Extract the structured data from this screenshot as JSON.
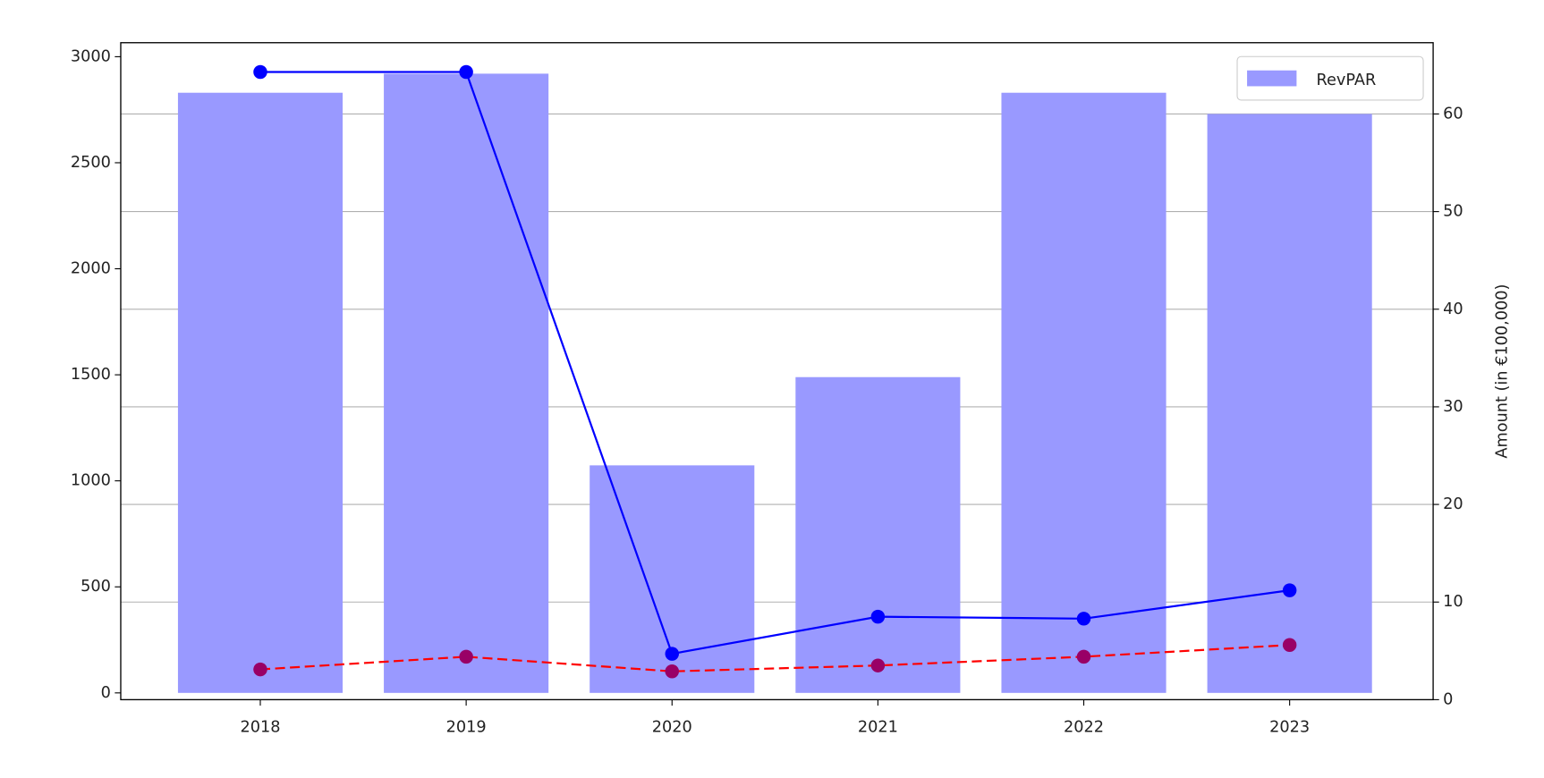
{
  "chart_data": {
    "type": "bar_line",
    "categories": [
      "2018",
      "2019",
      "2020",
      "2021",
      "2022",
      "2023"
    ],
    "series": [
      {
        "name": "RevPAR",
        "type": "bar",
        "color": "#9999ff",
        "values": [
          2830,
          2920,
          1073,
          1489,
          2830,
          2730
        ]
      },
      {
        "type": "line",
        "color": "#0000ff",
        "marker_color": "#0000ff",
        "linestyle": "solid",
        "axis": "y2",
        "values": [
          64.3,
          64.3,
          4.7,
          8.5,
          8.3,
          11.2
        ]
      },
      {
        "type": "line",
        "color": "#ff0000",
        "marker_color": "#990066",
        "linestyle": "dashed",
        "axis": "y2",
        "values": [
          3.1,
          4.4,
          2.9,
          3.5,
          4.4,
          5.6
        ]
      }
    ],
    "ylim": [
      -32,
      3066
    ],
    "yticks": [
      0,
      500,
      1000,
      1500,
      2000,
      2500,
      3000
    ],
    "y2lim": [
      0,
      67.3
    ],
    "y2ticks": [
      0,
      10,
      20,
      30,
      40,
      50,
      60
    ],
    "y2label": "Amount (in €100,000)",
    "grid": true,
    "legend": "upper right"
  }
}
